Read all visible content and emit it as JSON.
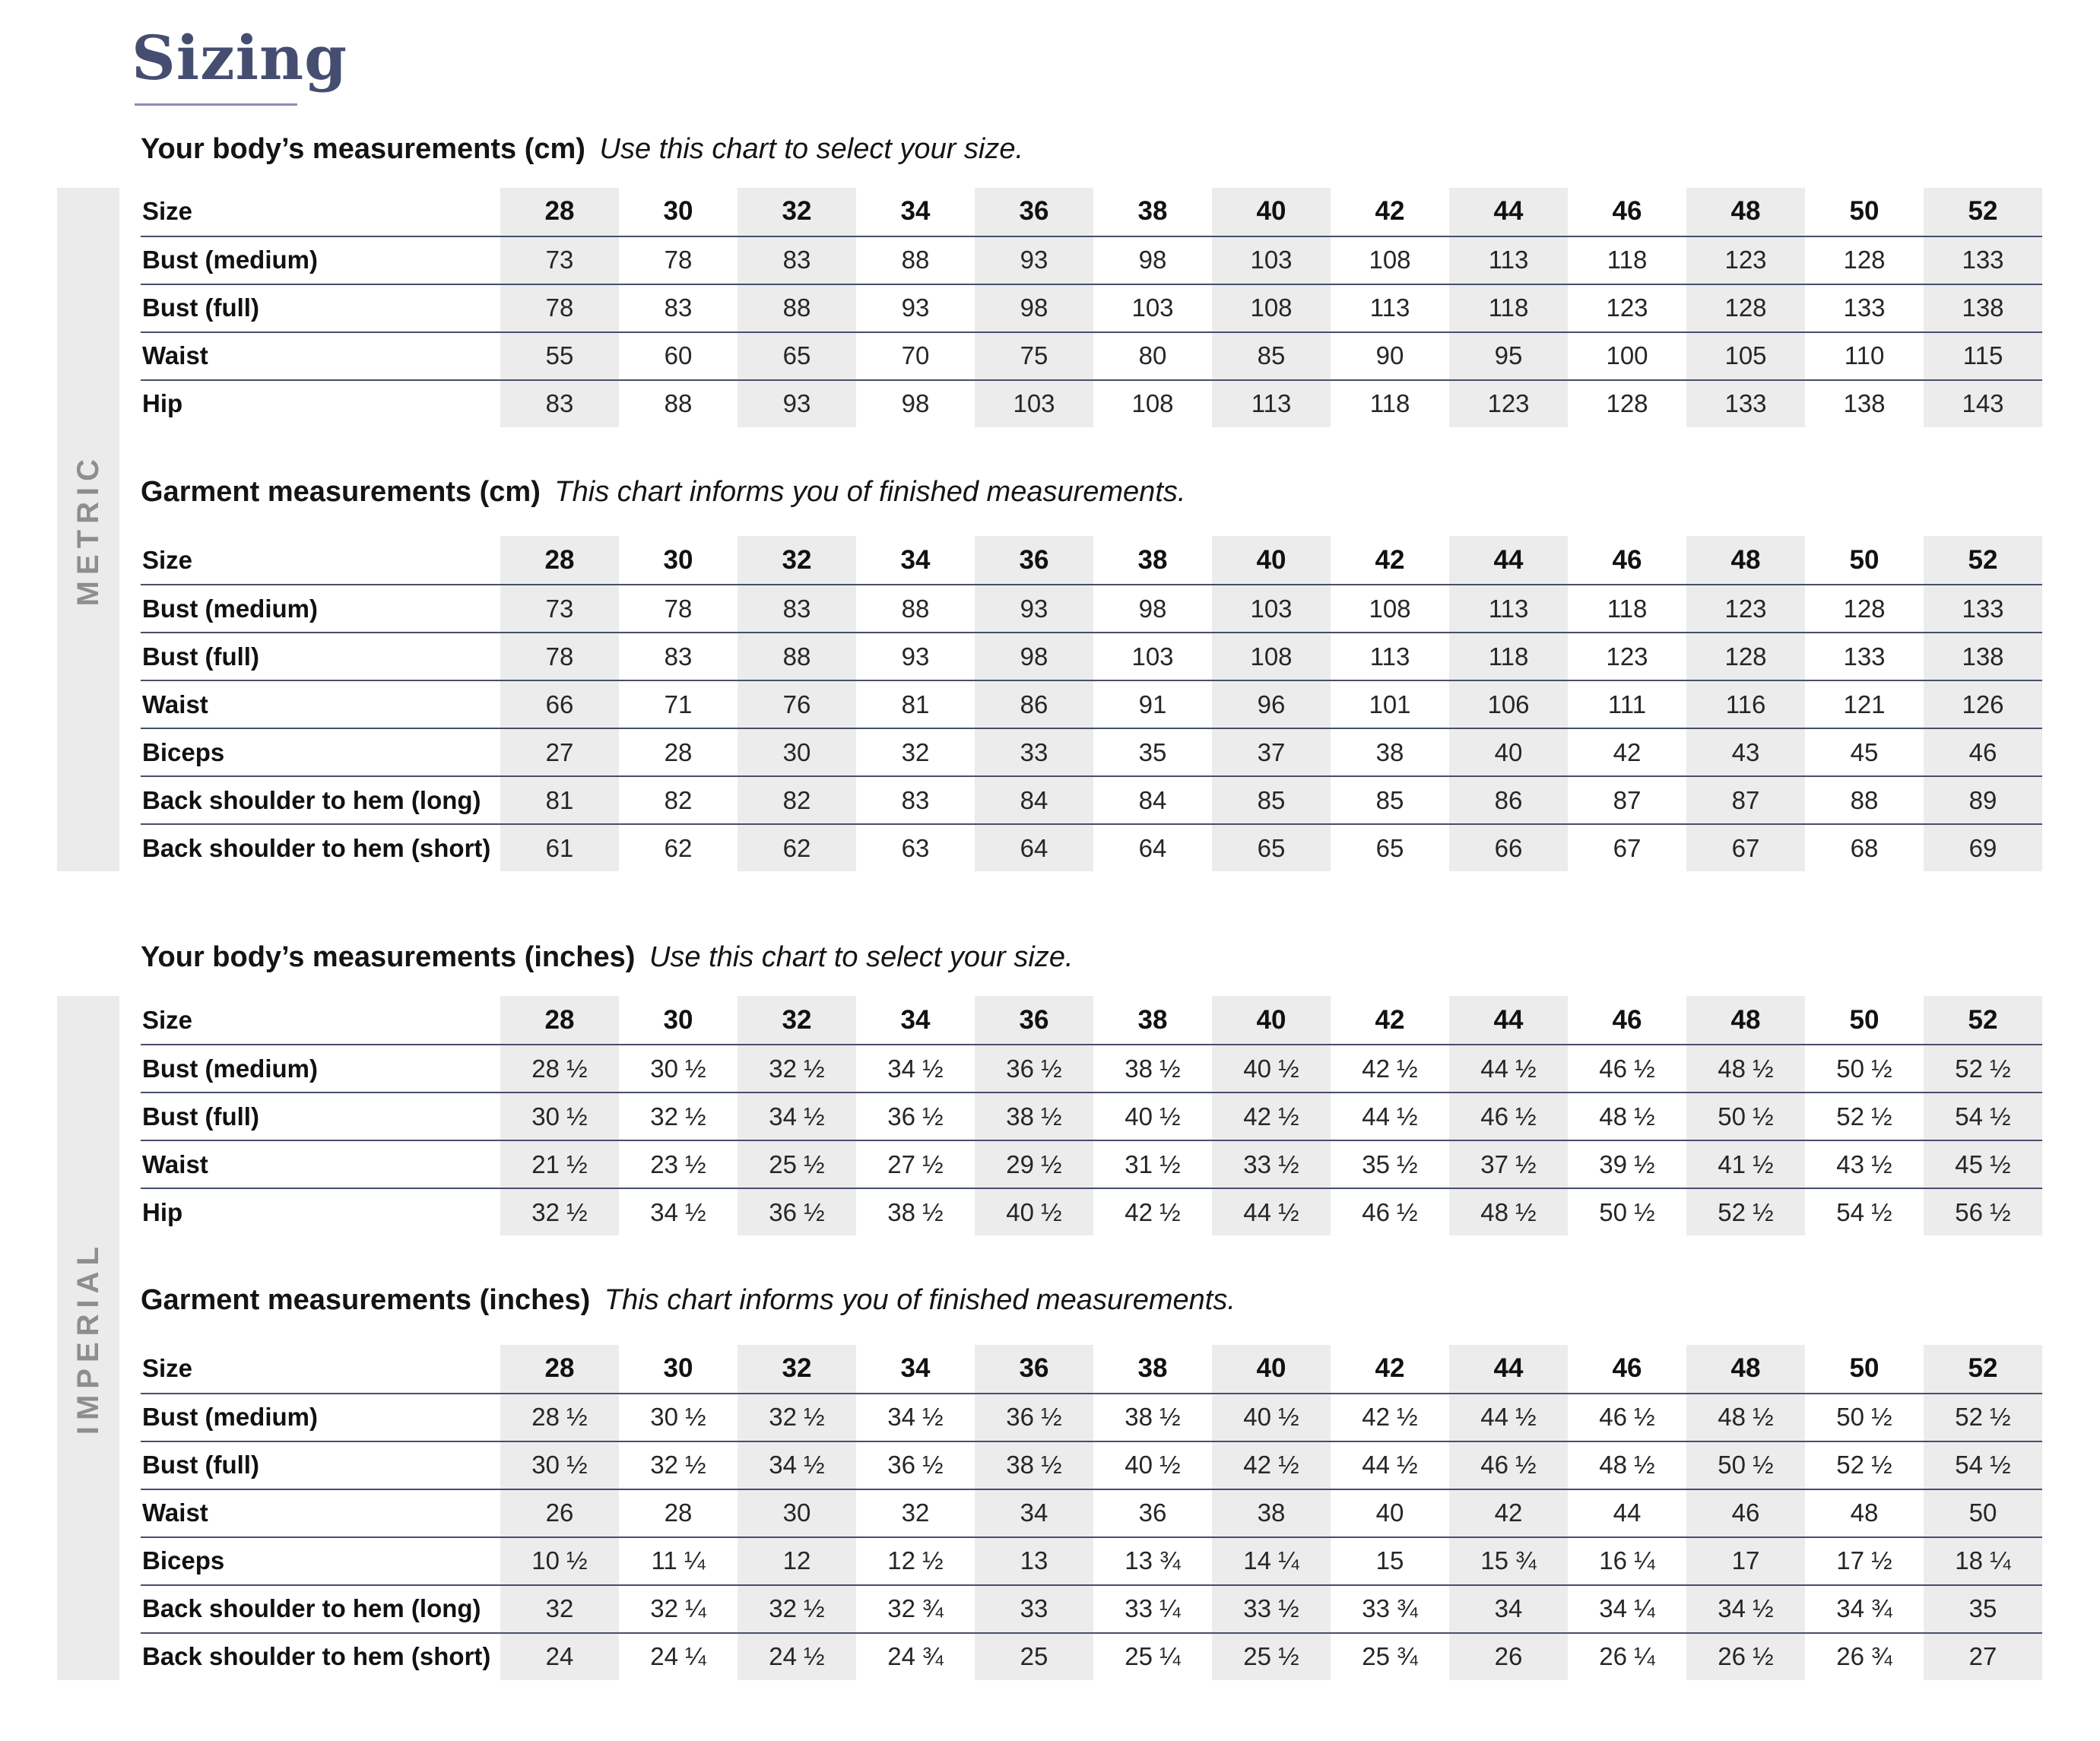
{
  "page_title": "Sizing",
  "colors": {
    "title_color": "#454e71",
    "underline_color": "#9089ba",
    "line_color": "#474e6e",
    "stripe_color": "#ececec",
    "bar_color": "#ebebeb",
    "unit_label_color": "#8e8e8e",
    "text_color": "#1b1b1f"
  },
  "sections": [
    {
      "unit_label": "METRIC",
      "tables": [
        {
          "heading_bold": "Your body’s measurements (cm)",
          "heading_italic": "Use this chart to select your size.",
          "size_label": "Size",
          "sizes": [
            "28",
            "30",
            "32",
            "34",
            "36",
            "38",
            "40",
            "42",
            "44",
            "46",
            "48",
            "50",
            "52"
          ],
          "rows": [
            {
              "label": "Bust (medium)",
              "values": [
                "73",
                "78",
                "83",
                "88",
                "93",
                "98",
                "103",
                "108",
                "113",
                "118",
                "123",
                "128",
                "133"
              ]
            },
            {
              "label": "Bust (full)",
              "values": [
                "78",
                "83",
                "88",
                "93",
                "98",
                "103",
                "108",
                "113",
                "118",
                "123",
                "128",
                "133",
                "138"
              ]
            },
            {
              "label": "Waist",
              "values": [
                "55",
                "60",
                "65",
                "70",
                "75",
                "80",
                "85",
                "90",
                "95",
                "100",
                "105",
                "110",
                "115"
              ]
            },
            {
              "label": "Hip",
              "values": [
                "83",
                "88",
                "93",
                "98",
                "103",
                "108",
                "113",
                "118",
                "123",
                "128",
                "133",
                "138",
                "143"
              ]
            }
          ]
        },
        {
          "heading_bold": "Garment measurements (cm)",
          "heading_italic": "This chart informs you of finished measurements.",
          "size_label": "Size",
          "sizes": [
            "28",
            "30",
            "32",
            "34",
            "36",
            "38",
            "40",
            "42",
            "44",
            "46",
            "48",
            "50",
            "52"
          ],
          "rows": [
            {
              "label": "Bust (medium)",
              "values": [
                "73",
                "78",
                "83",
                "88",
                "93",
                "98",
                "103",
                "108",
                "113",
                "118",
                "123",
                "128",
                "133"
              ]
            },
            {
              "label": "Bust (full)",
              "values": [
                "78",
                "83",
                "88",
                "93",
                "98",
                "103",
                "108",
                "113",
                "118",
                "123",
                "128",
                "133",
                "138"
              ]
            },
            {
              "label": "Waist",
              "values": [
                "66",
                "71",
                "76",
                "81",
                "86",
                "91",
                "96",
                "101",
                "106",
                "111",
                "116",
                "121",
                "126"
              ]
            },
            {
              "label": "Biceps",
              "values": [
                "27",
                "28",
                "30",
                "32",
                "33",
                "35",
                "37",
                "38",
                "40",
                "42",
                "43",
                "45",
                "46"
              ]
            },
            {
              "label": "Back shoulder to hem (long)",
              "values": [
                "81",
                "82",
                "82",
                "83",
                "84",
                "84",
                "85",
                "85",
                "86",
                "87",
                "87",
                "88",
                "89"
              ]
            },
            {
              "label": "Back shoulder to hem (short)",
              "values": [
                "61",
                "62",
                "62",
                "63",
                "64",
                "64",
                "65",
                "65",
                "66",
                "67",
                "67",
                "68",
                "69"
              ]
            }
          ]
        }
      ]
    },
    {
      "unit_label": "IMPERIAL",
      "tables": [
        {
          "heading_bold": "Your body’s measurements (inches)",
          "heading_italic": "Use this chart to select your size.",
          "size_label": "Size",
          "sizes": [
            "28",
            "30",
            "32",
            "34",
            "36",
            "38",
            "40",
            "42",
            "44",
            "46",
            "48",
            "50",
            "52"
          ],
          "rows": [
            {
              "label": "Bust (medium)",
              "values": [
                "28 ½",
                "30 ½",
                "32 ½",
                "34 ½",
                "36 ½",
                "38 ½",
                "40 ½",
                "42 ½",
                "44 ½",
                "46 ½",
                "48 ½",
                "50 ½",
                "52 ½"
              ]
            },
            {
              "label": "Bust (full)",
              "values": [
                "30 ½",
                "32 ½",
                "34 ½",
                "36 ½",
                "38 ½",
                "40 ½",
                "42 ½",
                "44 ½",
                "46 ½",
                "48 ½",
                "50 ½",
                "52 ½",
                "54 ½"
              ]
            },
            {
              "label": "Waist",
              "values": [
                "21 ½",
                "23 ½",
                "25 ½",
                "27 ½",
                "29 ½",
                "31 ½",
                "33 ½",
                "35 ½",
                "37 ½",
                "39 ½",
                "41 ½",
                "43 ½",
                "45 ½"
              ]
            },
            {
              "label": "Hip",
              "values": [
                "32 ½",
                "34 ½",
                "36 ½",
                "38 ½",
                "40 ½",
                "42 ½",
                "44 ½",
                "46 ½",
                "48 ½",
                "50 ½",
                "52 ½",
                "54 ½",
                "56 ½"
              ]
            }
          ]
        },
        {
          "heading_bold": "Garment measurements (inches)",
          "heading_italic": "This chart informs you of finished measurements.",
          "size_label": "Size",
          "sizes": [
            "28",
            "30",
            "32",
            "34",
            "36",
            "38",
            "40",
            "42",
            "44",
            "46",
            "48",
            "50",
            "52"
          ],
          "rows": [
            {
              "label": "Bust (medium)",
              "values": [
                "28 ½",
                "30 ½",
                "32 ½",
                "34 ½",
                "36 ½",
                "38 ½",
                "40 ½",
                "42 ½",
                "44 ½",
                "46 ½",
                "48 ½",
                "50 ½",
                "52 ½"
              ]
            },
            {
              "label": "Bust (full)",
              "values": [
                "30 ½",
                "32 ½",
                "34 ½",
                "36 ½",
                "38 ½",
                "40 ½",
                "42 ½",
                "44 ½",
                "46 ½",
                "48 ½",
                "50 ½",
                "52 ½",
                "54 ½"
              ]
            },
            {
              "label": "Waist",
              "values": [
                "26",
                "28",
                "30",
                "32",
                "34",
                "36",
                "38",
                "40",
                "42",
                "44",
                "46",
                "48",
                "50"
              ]
            },
            {
              "label": "Biceps",
              "values": [
                "10 ½",
                "11 ¼",
                "12",
                "12 ½",
                "13",
                "13 ¾",
                "14 ¼",
                "15",
                "15 ¾",
                "16 ¼",
                "17",
                "17 ½",
                "18 ¼"
              ]
            },
            {
              "label": "Back shoulder to hem (long)",
              "values": [
                "32",
                "32 ¼",
                "32 ½",
                "32 ¾",
                "33",
                "33 ¼",
                "33 ½",
                "33 ¾",
                "34",
                "34 ¼",
                "34 ½",
                "34 ¾",
                "35"
              ]
            },
            {
              "label": "Back shoulder to hem (short)",
              "values": [
                "24",
                "24 ¼",
                "24 ½",
                "24 ¾",
                "25",
                "25 ¼",
                "25 ½",
                "25 ¾",
                "26",
                "26 ¼",
                "26 ½",
                "26 ¾",
                "27"
              ]
            }
          ]
        }
      ]
    }
  ]
}
